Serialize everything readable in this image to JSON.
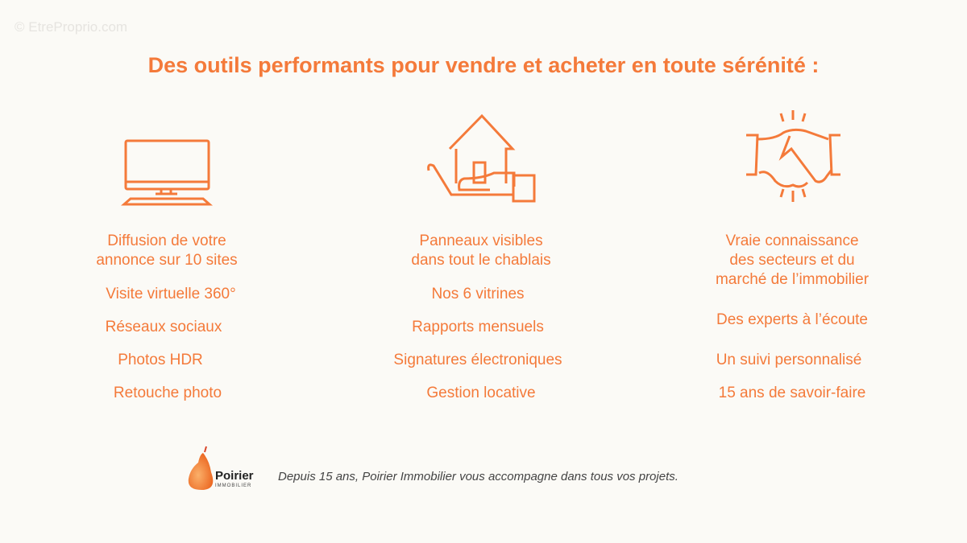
{
  "watermark": "© EtreProprio.com",
  "title": "Des outils performants pour vendre et acheter en toute sérénité :",
  "accent_color": "#f47a3a",
  "columns": [
    {
      "icon": "monitor-icon",
      "items": [
        "Diffusion de votre\nannonce sur 10 sites",
        "Visite virtuelle 360°",
        "Réseaux sociaux",
        "Photos HDR",
        "Retouche photo"
      ]
    },
    {
      "icon": "house-in-hand-icon",
      "items": [
        "Panneaux visibles\ndans tout le chablais",
        "Nos 6 vitrines",
        "Rapports mensuels",
        "Signatures électroniques",
        "Gestion locative"
      ]
    },
    {
      "icon": "handshake-icon",
      "items": [
        "Vraie connaissance\ndes secteurs et du\nmarché de l’immobilier",
        "Des experts à l’écoute",
        "Un suivi personnalisé",
        "15 ans de savoir-faire"
      ]
    }
  ],
  "footer": {
    "logo_name": "Poirier",
    "logo_sub": "IMMOBILIER",
    "tagline": "Depuis 15 ans, Poirier Immobilier vous accompagne dans tous vos projets."
  }
}
